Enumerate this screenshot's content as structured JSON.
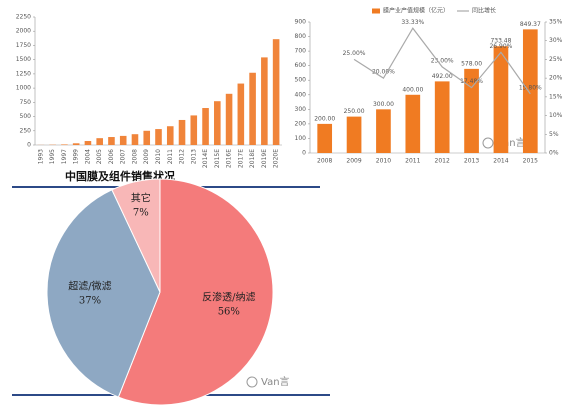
{
  "chart_data": [
    {
      "type": "bar",
      "categories": [
        "1993",
        "1995",
        "1997",
        "1999",
        "2004",
        "2005",
        "2006",
        "2007",
        "2008",
        "2009",
        "2010",
        "2011",
        "2012",
        "2013",
        "2014E",
        "2015E",
        "2016E",
        "2017E",
        "2018E",
        "2019E",
        "2020E"
      ],
      "values": [
        2,
        5,
        10,
        30,
        70,
        120,
        140,
        160,
        190,
        250,
        280,
        330,
        440,
        520,
        650,
        770,
        900,
        1080,
        1270,
        1540,
        1860
      ],
      "color": "#f0843a",
      "ylim": [
        0,
        2250
      ],
      "yticks": [
        0,
        250,
        500,
        750,
        1000,
        1250,
        1500,
        1750,
        2000,
        2250
      ]
    },
    {
      "type": "combo",
      "categories": [
        "2008",
        "2009",
        "2010",
        "2011",
        "2012",
        "2013",
        "2014",
        "2015"
      ],
      "series": [
        {
          "name": "膜产业产值规模（亿元）",
          "color": "#f07b22",
          "values": [
            200,
            250,
            300,
            400,
            492,
            578,
            733.48,
            849.37
          ],
          "value_labels": [
            "200.00",
            "250.00",
            "300.00",
            "400.00",
            "492.00",
            "578.00",
            "733.48",
            "849.37"
          ]
        },
        {
          "name": "同比增长",
          "color": "#aaaaaa",
          "axis": "y2",
          "values": [
            null,
            25,
            20,
            33.33,
            23,
            17.48,
            26.9,
            15.8
          ],
          "value_labels": [
            null,
            "25.00%",
            "20.00%",
            "33.33%",
            "23.00%",
            "17.48%",
            "26.90%",
            "15.80%"
          ]
        }
      ],
      "ylim": [
        0,
        900
      ],
      "yticks": [
        0,
        100,
        200,
        300,
        400,
        500,
        600,
        700,
        800,
        900
      ],
      "y2lim": [
        0,
        35
      ],
      "y2ticks": [
        {
          "value": 0,
          "label": "0%"
        },
        {
          "value": 5,
          "label": "5%"
        },
        {
          "value": 10,
          "label": "10%"
        },
        {
          "value": 15,
          "label": "15%"
        },
        {
          "value": 20,
          "label": "20%"
        },
        {
          "value": 25,
          "label": "25%"
        },
        {
          "value": 30,
          "label": "30%"
        },
        {
          "value": 35,
          "label": "35%"
        }
      ]
    },
    {
      "type": "pie",
      "title": "中国膜及组件销售状况",
      "categories": [
        "反渗透/纳滤",
        "超滤/微滤",
        "其它"
      ],
      "values": [
        56,
        37,
        7
      ],
      "value_labels": [
        "56%",
        "37%",
        "7%"
      ],
      "colors": [
        "#f47b7b",
        "#8ea8c3",
        "#f8b7b7"
      ]
    }
  ],
  "watermarks": [
    "Van言",
    "Van言"
  ]
}
